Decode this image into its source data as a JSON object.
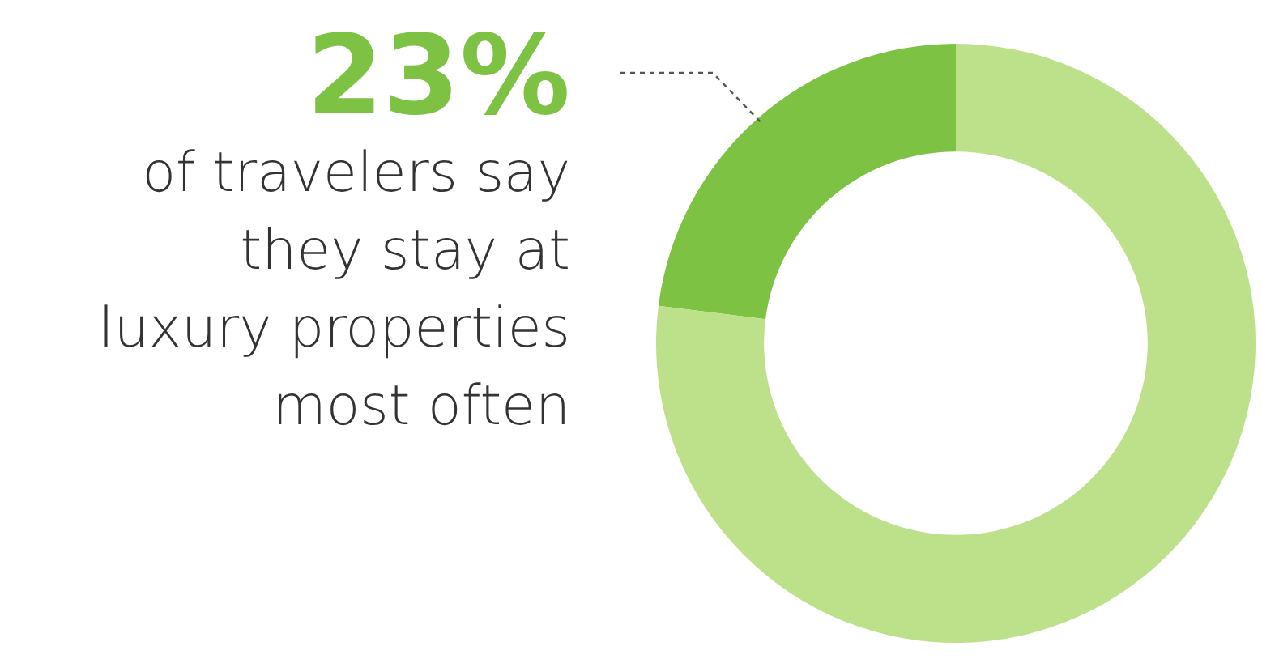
{
  "chart_data": {
    "type": "donut",
    "categories": [
      null,
      null
    ],
    "values": [
      23,
      77
    ],
    "colors": [
      "#7dc242",
      "#bde08a"
    ],
    "value_labels": [
      "23%",
      null
    ],
    "annotations": [
      "of travelers say they stay at luxury properties most often"
    ]
  }
}
